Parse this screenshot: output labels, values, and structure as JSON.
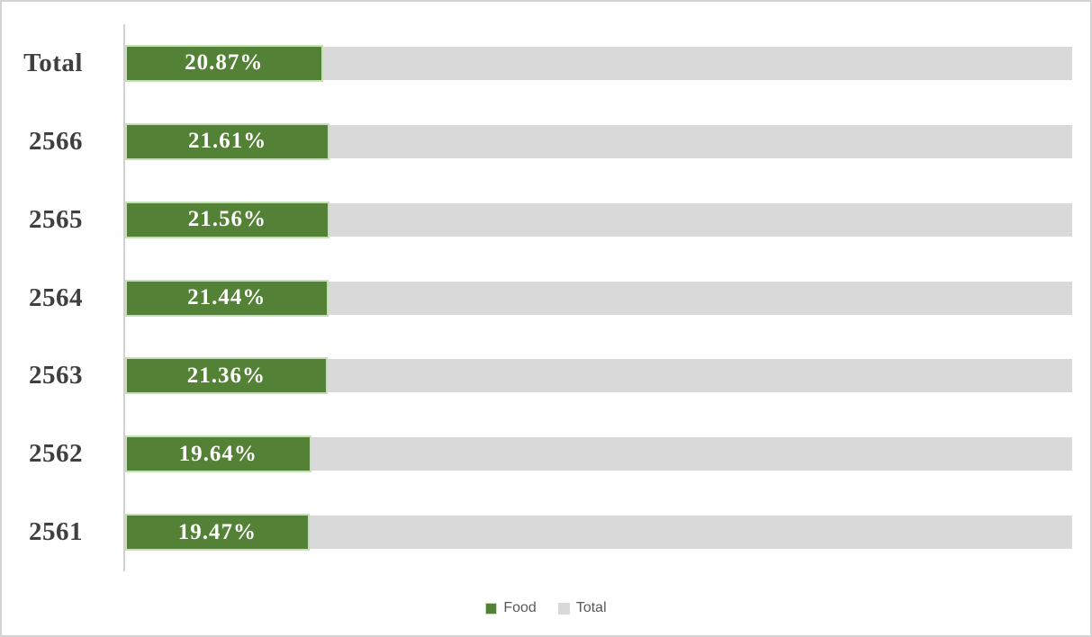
{
  "chart_data": {
    "type": "bar",
    "orientation": "horizontal",
    "categories": [
      "Total",
      "2566",
      "2565",
      "2564",
      "2563",
      "2562",
      "2561"
    ],
    "series": [
      {
        "name": "Food",
        "values": [
          20.87,
          21.61,
          21.56,
          21.44,
          21.36,
          19.64,
          19.47
        ],
        "color": "#538135",
        "border_color": "#c5e0b4"
      },
      {
        "name": "Total",
        "values": [
          100,
          100,
          100,
          100,
          100,
          100,
          100
        ],
        "color": "#d9d9d9"
      }
    ],
    "data_labels": [
      "20.87%",
      "21.61%",
      "21.56%",
      "21.44%",
      "21.36%",
      "19.64%",
      "19.47%"
    ],
    "xlim": [
      0,
      100
    ],
    "grid": false,
    "legend_position": "bottom",
    "legend": [
      {
        "label": "Food",
        "color": "#538135",
        "border": "#c5e0b4"
      },
      {
        "label": "Total",
        "color": "#d9d9d9",
        "border": "#d9d9d9"
      }
    ]
  },
  "colors": {
    "category_text": "#3f3f3f",
    "value_text": "#ffffff",
    "legend_text": "#595959",
    "axis_line": "#d1d1d1",
    "page_border": "#d3d3d3"
  }
}
